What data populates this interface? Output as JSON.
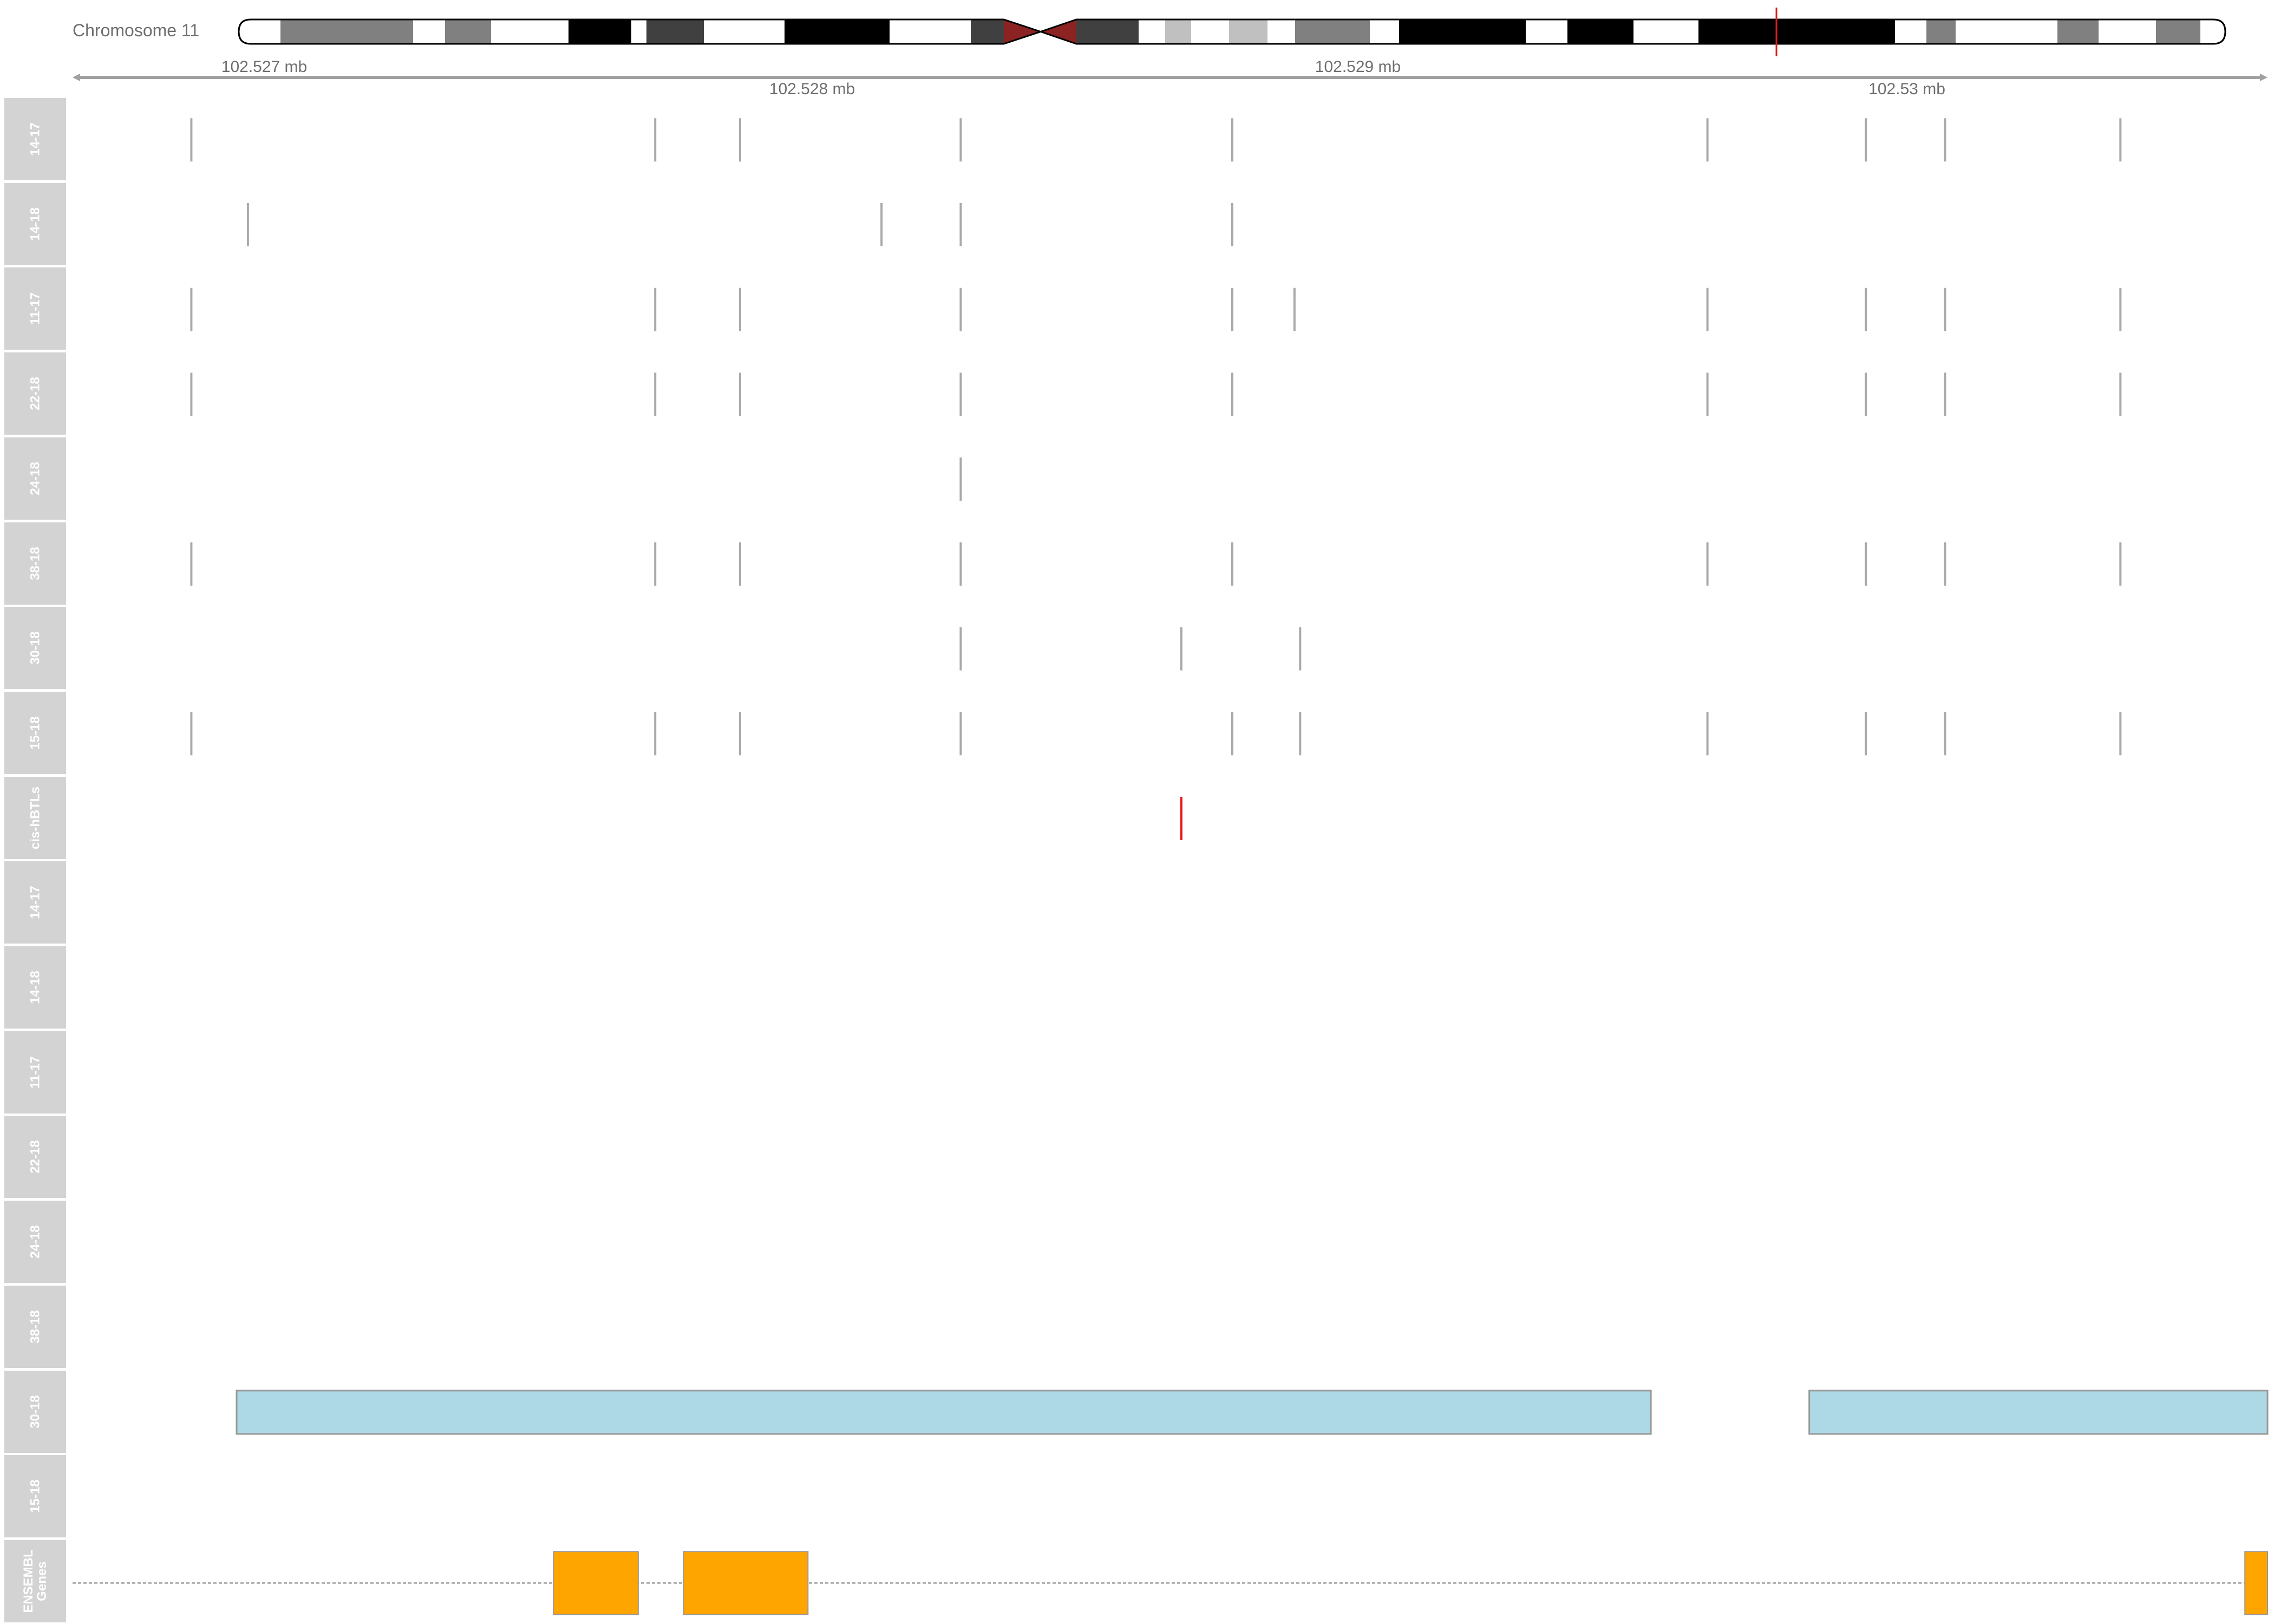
{
  "chromosome": {
    "label": "Chromosome 11",
    "centromere_color": "#8b2323",
    "region_marker_color": "#e41a1c"
  },
  "axis": {
    "unit": "mb",
    "ticks_top": [
      "102.527 mb",
      "102.529 mb"
    ],
    "ticks_bottom": [
      "102.528 mb",
      "102.53 mb"
    ]
  },
  "chart_data": {
    "type": "genome-tracks",
    "chromosome": "Chromosome 11",
    "xlim_mb": [
      102.52679,
      102.53067
    ],
    "track_labels": [
      "14-17",
      "14-18",
      "11-17",
      "22-18",
      "24-18",
      "38-18",
      "30-18",
      "15-18",
      "cis-hBTLs",
      "14-17",
      "14-18",
      "11-17",
      "22-18",
      "24-18",
      "38-18",
      "30-18",
      "15-18",
      "ENSEMBL Genes"
    ],
    "snp_tracks": [
      {
        "name": "14-17",
        "positions_mb": [
          102.527,
          102.52782,
          102.52797,
          102.52836,
          102.52884,
          102.52968,
          102.52996,
          102.5301,
          102.53041
        ]
      },
      {
        "name": "14-18",
        "positions_mb": [
          102.5271,
          102.52822,
          102.52836,
          102.52884
        ]
      },
      {
        "name": "11-17",
        "positions_mb": [
          102.527,
          102.52782,
          102.52797,
          102.52836,
          102.52884,
          102.52895,
          102.52968,
          102.52996,
          102.5301,
          102.53041
        ]
      },
      {
        "name": "22-18",
        "positions_mb": [
          102.527,
          102.52782,
          102.52797,
          102.52836,
          102.52884,
          102.52968,
          102.52996,
          102.5301,
          102.53041
        ]
      },
      {
        "name": "24-18",
        "positions_mb": [
          102.52836
        ]
      },
      {
        "name": "38-18",
        "positions_mb": [
          102.527,
          102.52782,
          102.52797,
          102.52836,
          102.52884,
          102.52968,
          102.52996,
          102.5301,
          102.53041
        ]
      },
      {
        "name": "30-18",
        "positions_mb": [
          102.52836,
          102.52875,
          102.52896
        ]
      },
      {
        "name": "15-18",
        "positions_mb": [
          102.527,
          102.52782,
          102.52797,
          102.52836,
          102.52884,
          102.52896,
          102.52968,
          102.52996,
          102.5301,
          102.53041
        ]
      }
    ],
    "cis_hbtls": {
      "name": "cis-hBTLs",
      "positions_mb": [
        102.52875
      ],
      "color": "#e41a1c"
    },
    "region_tracks": [
      {
        "name": "30-18",
        "color": "#add8e6",
        "regions_mb": [
          [
            102.52708,
            102.52958
          ],
          [
            102.52986,
            102.53069
          ]
        ]
      }
    ],
    "genes": {
      "name": "ENSEMBL Genes",
      "color": "#ffa500",
      "exons_mb": [
        [
          102.52764,
          102.52779
        ],
        [
          102.52787,
          102.52809
        ],
        [
          102.53063,
          102.53069
        ]
      ]
    }
  }
}
